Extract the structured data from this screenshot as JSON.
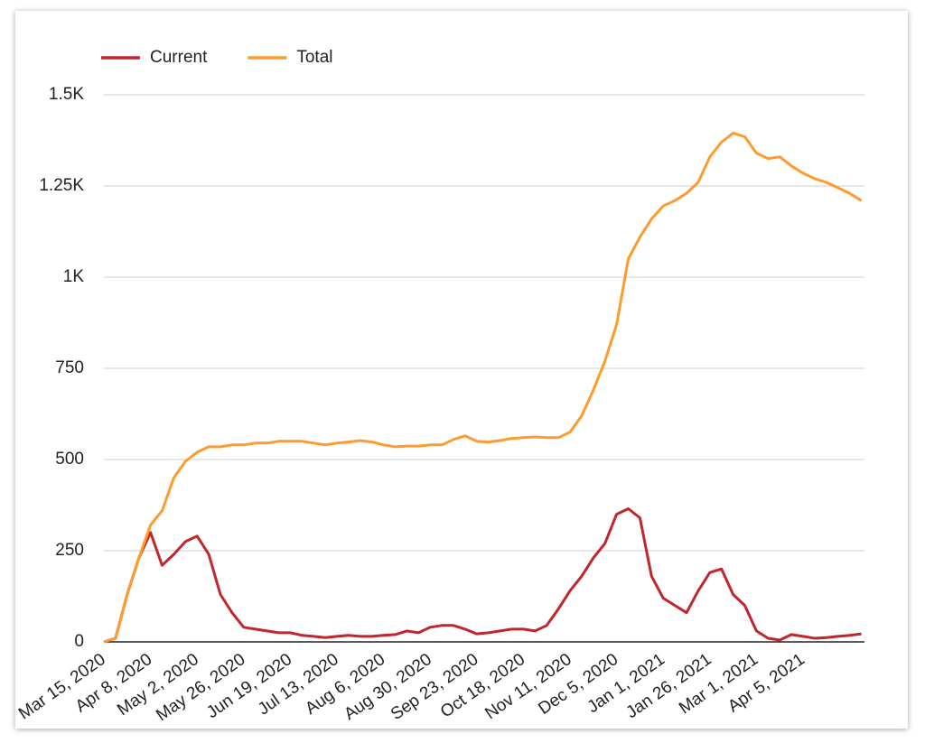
{
  "chart_data": {
    "type": "line",
    "categories": [
      "Mar 15, 2020",
      null,
      null,
      null,
      "Apr 8, 2020",
      null,
      null,
      null,
      "May 2, 2020",
      null,
      null,
      null,
      "May 26, 2020",
      null,
      null,
      null,
      "Jun 19, 2020",
      null,
      null,
      null,
      "Jul 13, 2020",
      null,
      null,
      null,
      "Aug 6, 2020",
      null,
      null,
      null,
      "Aug 30, 2020",
      null,
      null,
      null,
      "Sep 23, 2020",
      null,
      null,
      null,
      "Oct 18, 2020",
      null,
      null,
      null,
      "Nov 11, 2020",
      null,
      null,
      null,
      "Dec 5, 2020",
      null,
      null,
      null,
      "Jan 1, 2021",
      null,
      null,
      null,
      "Jan 26, 2021",
      null,
      null,
      null,
      "Mar 1, 2021",
      null,
      null,
      null,
      "Apr 5, 2021",
      null,
      null,
      null,
      null,
      null
    ],
    "series": [
      {
        "name": "Current",
        "color": "#c0262b",
        "values": [
          0,
          10,
          130,
          230,
          300,
          210,
          240,
          275,
          290,
          240,
          130,
          80,
          40,
          35,
          30,
          25,
          25,
          18,
          15,
          12,
          15,
          18,
          15,
          15,
          18,
          20,
          30,
          25,
          40,
          45,
          45,
          35,
          22,
          25,
          30,
          35,
          35,
          30,
          45,
          90,
          140,
          180,
          230,
          270,
          350,
          365,
          340,
          180,
          120,
          100,
          80,
          140,
          190,
          200,
          130,
          100,
          30,
          10,
          5,
          20,
          15,
          10,
          12,
          15,
          18,
          22
        ]
      },
      {
        "name": "Total",
        "color": "#ff9a2e",
        "values": [
          0,
          10,
          130,
          230,
          320,
          360,
          450,
          495,
          520,
          535,
          535,
          540,
          540,
          545,
          545,
          550,
          550,
          550,
          545,
          540,
          545,
          548,
          552,
          548,
          540,
          535,
          537,
          537,
          540,
          540,
          555,
          565,
          550,
          548,
          552,
          558,
          560,
          562,
          560,
          560,
          575,
          620,
          690,
          770,
          870,
          1050,
          1110,
          1160,
          1195,
          1210,
          1230,
          1260,
          1330,
          1370,
          1395,
          1385,
          1340,
          1325,
          1330,
          1305,
          1285,
          1270,
          1260,
          1245,
          1230,
          1210
        ]
      }
    ],
    "ylim": [
      0,
      1500
    ],
    "yticks": [
      0,
      250,
      500,
      750,
      {
        "value": 1000,
        "label": "1K"
      },
      {
        "value": 1250,
        "label": "1.25K"
      },
      {
        "value": 1500,
        "label": "1.5K"
      }
    ],
    "grid": true,
    "legend": "top"
  }
}
